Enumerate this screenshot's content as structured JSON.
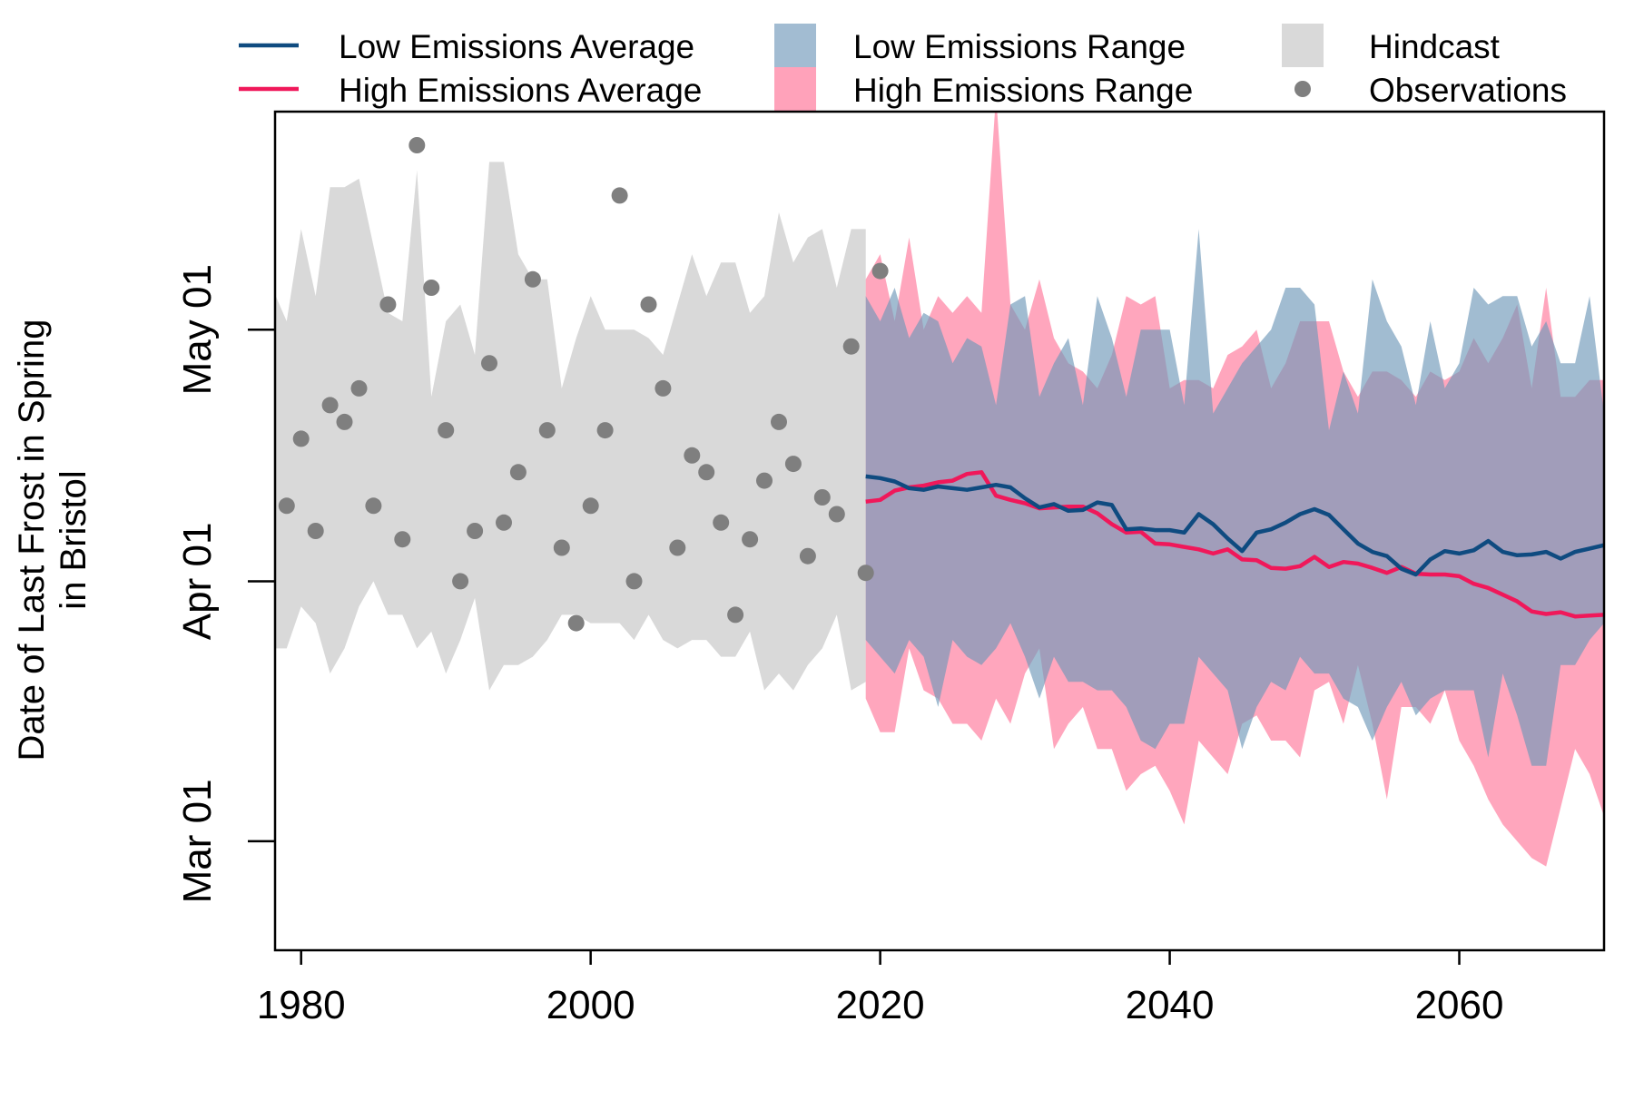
{
  "chart_data": {
    "type": "area",
    "title": "",
    "ylabel": [
      "Date of Last Frost in Spring",
      "in Bristol"
    ],
    "xlabel": "",
    "x_ticks": [
      1980,
      2000,
      2020,
      2040,
      2060
    ],
    "xlim": [
      1978.2,
      2070
    ],
    "y_ticks": [
      {
        "label": "Mar 01",
        "day": 60
      },
      {
        "label": "Apr 01",
        "day": 91
      },
      {
        "label": "May 01",
        "day": 121
      }
    ],
    "ylim": [
      47,
      147
    ],
    "colors": {
      "low_avg": "#0f4b80",
      "high_avg": "#f0185a",
      "low_range": "#6e98b8",
      "high_range": "#ff6f94",
      "hindcast": "#d9d9d9",
      "observations": "#7f7f7f"
    },
    "legend": [
      {
        "label": "Low Emissions Average",
        "kind": "line",
        "color": "#0f4b80"
      },
      {
        "label": "High Emissions Average",
        "kind": "line",
        "color": "#f0185a"
      },
      {
        "label": "Low Emissions Range",
        "kind": "box",
        "color": "#a2bcd2"
      },
      {
        "label": "High Emissions Range",
        "kind": "box",
        "color": "#ffa2ba"
      },
      {
        "label": "Hindcast",
        "kind": "box",
        "color": "#d9d9d9"
      },
      {
        "label": "Observations",
        "kind": "dot",
        "color": "#7f7f7f"
      }
    ],
    "hindcast": {
      "x": [
        1978,
        1979,
        1980,
        1981,
        1982,
        1983,
        1984,
        1985,
        1986,
        1987,
        1988,
        1989,
        1990,
        1991,
        1992,
        1993,
        1994,
        1995,
        1996,
        1997,
        1998,
        1999,
        2000,
        2001,
        2002,
        2003,
        2004,
        2005,
        2006,
        2007,
        2008,
        2009,
        2010,
        2011,
        2012,
        2013,
        2014,
        2015,
        2016,
        2017,
        2018,
        2019
      ],
      "upper": [
        126,
        122,
        133,
        125,
        138,
        138,
        139,
        131,
        123,
        122,
        140,
        113,
        122,
        124,
        118,
        141,
        141,
        130,
        127,
        127,
        114,
        120,
        125,
        121,
        121,
        121,
        120,
        118,
        124,
        130,
        125,
        129,
        129,
        123,
        125,
        135,
        129,
        132,
        133,
        126,
        133,
        133
      ],
      "lower": [
        83,
        83,
        88,
        86,
        80,
        83,
        88,
        91,
        87,
        87,
        83,
        85,
        80,
        84,
        89,
        78,
        81,
        81,
        82,
        84,
        87,
        87,
        86,
        86,
        86,
        84,
        87,
        84,
        83,
        84,
        84,
        82,
        82,
        85,
        78,
        80,
        78,
        81,
        83,
        87,
        78,
        79
      ]
    },
    "observations": {
      "x": [
        1979,
        1980,
        1981,
        1982,
        1983,
        1984,
        1985,
        1986,
        1987,
        1988,
        1989,
        1990,
        1991,
        1992,
        1993,
        1994,
        1995,
        1996,
        1997,
        1998,
        1999,
        2000,
        2001,
        2002,
        2003,
        2004,
        2005,
        2006,
        2007,
        2008,
        2009,
        2010,
        2011,
        2012,
        2013,
        2014,
        2015,
        2016,
        2017,
        2018,
        2019,
        2020
      ],
      "y": [
        100,
        108,
        97,
        112,
        110,
        114,
        100,
        124,
        96,
        143,
        126,
        109,
        91,
        97,
        117,
        98,
        104,
        127,
        109,
        95,
        86,
        100,
        109,
        137,
        91,
        124,
        114,
        95,
        106,
        104,
        98,
        87,
        96,
        103,
        110,
        105,
        94,
        101,
        99,
        119,
        92,
        128
      ]
    },
    "low_emissions": {
      "x": [
        2019,
        2020,
        2021,
        2022,
        2023,
        2024,
        2025,
        2026,
        2027,
        2028,
        2029,
        2030,
        2031,
        2032,
        2033,
        2034,
        2035,
        2036,
        2037,
        2038,
        2039,
        2040,
        2041,
        2042,
        2043,
        2044,
        2045,
        2046,
        2047,
        2048,
        2049,
        2050,
        2051,
        2052,
        2053,
        2054,
        2055,
        2056,
        2057,
        2058,
        2059,
        2060,
        2061,
        2062,
        2063,
        2064,
        2065,
        2066,
        2067,
        2068,
        2069,
        2070
      ],
      "average": [
        103.5,
        103.3,
        102.9,
        102.1,
        101.9,
        102.3,
        102.1,
        101.9,
        102.2,
        102.5,
        102.2,
        100.9,
        99.8,
        100.2,
        99.4,
        99.5,
        100.4,
        100.1,
        97.2,
        97.3,
        97.1,
        97.1,
        96.8,
        99.0,
        97.8,
        96.1,
        94.6,
        96.8,
        97.2,
        98.0,
        99.0,
        99.6,
        98.9,
        97.2,
        95.5,
        94.5,
        94.0,
        92.5,
        91.8,
        93.6,
        94.6,
        94.3,
        94.7,
        95.8,
        94.5,
        94.1,
        94.2,
        94.5,
        93.7,
        94.5,
        94.9,
        95.3
      ],
      "upper": [
        125,
        122,
        126,
        120,
        123,
        122,
        117,
        120,
        119,
        112,
        124,
        125,
        113,
        117,
        120,
        112,
        125,
        120,
        113,
        121,
        121,
        121,
        112,
        133,
        111,
        114,
        117,
        119,
        121,
        126,
        126,
        124,
        109,
        116,
        111,
        127,
        122,
        119,
        112,
        122,
        114,
        117,
        126,
        124,
        125,
        125,
        119,
        122,
        117,
        117,
        125,
        111
      ],
      "lower": [
        84,
        82,
        80,
        84,
        82,
        76,
        84,
        82,
        81,
        83,
        86,
        82,
        77,
        82,
        79,
        79,
        78,
        78,
        76,
        72,
        71,
        74,
        74,
        82,
        80,
        78,
        71,
        76,
        79,
        78,
        82,
        80,
        80,
        77,
        76,
        72,
        76,
        79,
        75,
        77,
        78,
        78,
        78,
        70,
        80,
        75,
        69,
        69,
        81,
        81,
        84,
        86
      ]
    },
    "high_emissions": {
      "x": [
        2019,
        2020,
        2021,
        2022,
        2023,
        2024,
        2025,
        2026,
        2027,
        2028,
        2029,
        2030,
        2031,
        2032,
        2033,
        2034,
        2035,
        2036,
        2037,
        2038,
        2039,
        2040,
        2041,
        2042,
        2043,
        2044,
        2045,
        2046,
        2047,
        2048,
        2049,
        2050,
        2051,
        2052,
        2053,
        2054,
        2055,
        2056,
        2057,
        2058,
        2059,
        2060,
        2061,
        2062,
        2063,
        2064,
        2065,
        2066,
        2067,
        2068,
        2069,
        2070
      ],
      "average": [
        100.5,
        100.7,
        101.8,
        102.2,
        102.4,
        102.8,
        103.0,
        103.8,
        104.0,
        101.2,
        100.7,
        100.3,
        99.7,
        99.8,
        99.9,
        99.9,
        99.1,
        97.8,
        96.8,
        96.9,
        95.5,
        95.4,
        95.1,
        94.8,
        94.3,
        94.8,
        93.6,
        93.5,
        92.6,
        92.5,
        92.8,
        93.9,
        92.7,
        93.3,
        93.1,
        92.6,
        92.0,
        92.7,
        91.9,
        91.8,
        91.8,
        91.6,
        90.7,
        90.2,
        89.4,
        88.6,
        87.4,
        87.1,
        87.3,
        86.8,
        86.9,
        87.0
      ],
      "upper": [
        127,
        130,
        122,
        132,
        121,
        125,
        123,
        125,
        123,
        149,
        124,
        121,
        127,
        120,
        117,
        116,
        114,
        118,
        125,
        124,
        125,
        114,
        115,
        115,
        114,
        118,
        119,
        121,
        114,
        117,
        122,
        122,
        122,
        116,
        113,
        116,
        116,
        115,
        113,
        116,
        115,
        116,
        120,
        117,
        120,
        124,
        114,
        126,
        113,
        113,
        115,
        115
      ],
      "lower": [
        77,
        73,
        73,
        83,
        78,
        77,
        74,
        74,
        72,
        77,
        74,
        80,
        83,
        71,
        74,
        76,
        71,
        71,
        66,
        68,
        69,
        66,
        62,
        72,
        70,
        68,
        74,
        75,
        72,
        72,
        70,
        78,
        79,
        74,
        81,
        74,
        65,
        76,
        76,
        74,
        78,
        72,
        69,
        65,
        62,
        60,
        58,
        57,
        64,
        71,
        68,
        63
      ]
    }
  }
}
